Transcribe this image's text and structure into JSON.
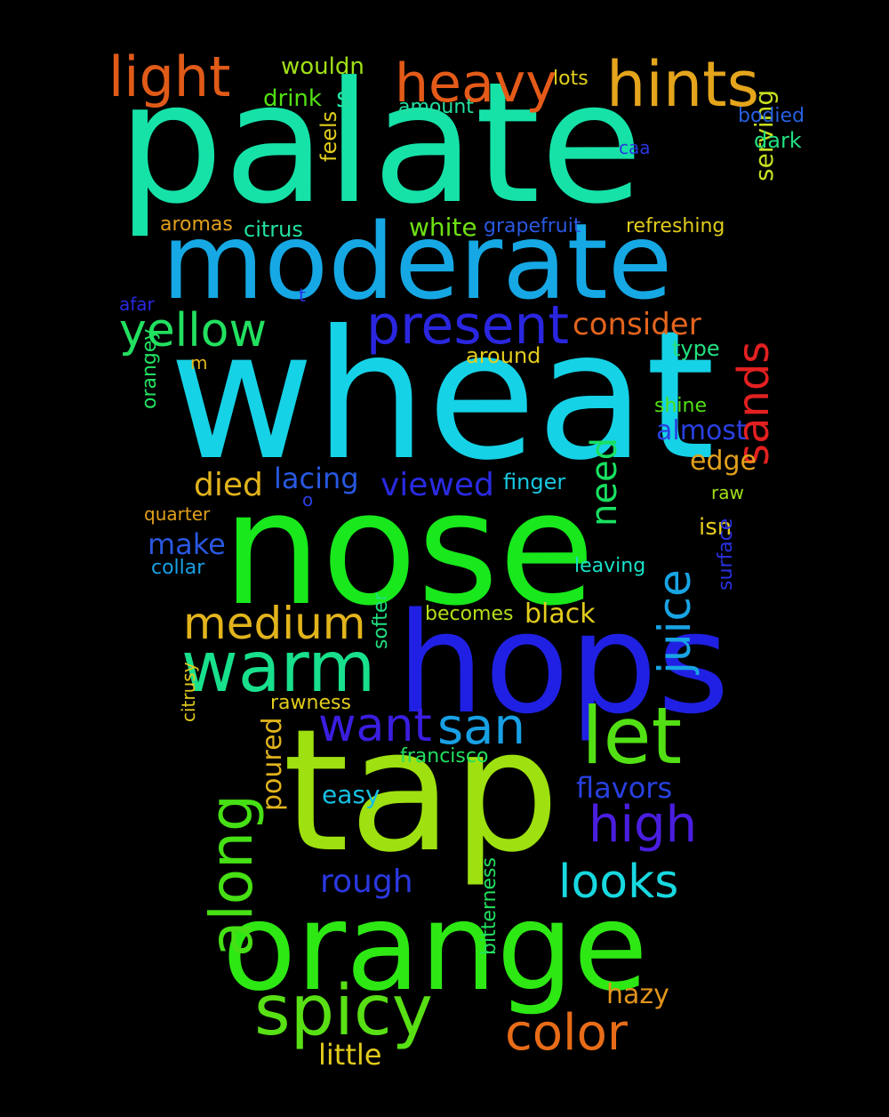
{
  "words": [
    {
      "text": "palate",
      "color": "#16e2a8"
    },
    {
      "text": "wheat",
      "color": "#16d2e6"
    },
    {
      "text": "nose",
      "color": "#18e81c"
    },
    {
      "text": "tap",
      "color": "#9ee010"
    },
    {
      "text": "hops",
      "color": "#2020e4"
    },
    {
      "text": "moderate",
      "color": "#16a8e4"
    },
    {
      "text": "orange",
      "color": "#2ee814"
    },
    {
      "text": "hints",
      "color": "#e4a41c"
    },
    {
      "text": "light",
      "color": "#e05a18"
    },
    {
      "text": "heavy",
      "color": "#e45a18"
    },
    {
      "text": "present",
      "color": "#2a26e0"
    },
    {
      "text": "yellow",
      "color": "#22e060"
    },
    {
      "text": "warm",
      "color": "#18e08c"
    },
    {
      "text": "let",
      "color": "#52e014"
    },
    {
      "text": "spicy",
      "color": "#58e014"
    },
    {
      "text": "color",
      "color": "#e86c18"
    },
    {
      "text": "medium",
      "color": "#e2b41c"
    },
    {
      "text": "along",
      "color": "#46e014"
    },
    {
      "text": "san",
      "color": "#18a0e4"
    },
    {
      "text": "want",
      "color": "#3a1ee0"
    },
    {
      "text": "high",
      "color": "#4a1ee0"
    },
    {
      "text": "looks",
      "color": "#18d8e0"
    },
    {
      "text": "sands",
      "color": "#e22020"
    },
    {
      "text": "juice",
      "color": "#18a4e4"
    },
    {
      "text": "consider",
      "color": "#e2641e"
    },
    {
      "text": "viewed",
      "color": "#2a2ae2"
    },
    {
      "text": "died",
      "color": "#e2b41c"
    },
    {
      "text": "lacing",
      "color": "#2858e0"
    },
    {
      "text": "need",
      "color": "#18e060"
    },
    {
      "text": "almost",
      "color": "#2a40e0"
    },
    {
      "text": "edge",
      "color": "#e2a01c"
    },
    {
      "text": "make",
      "color": "#2a58e0"
    },
    {
      "text": "rough",
      "color": "#2a38e0"
    },
    {
      "text": "flavors",
      "color": "#2840e0"
    },
    {
      "text": "black",
      "color": "#e2cc1c"
    },
    {
      "text": "hazy",
      "color": "#e2941c"
    },
    {
      "text": "little",
      "color": "#e2cc1c"
    },
    {
      "text": "serving",
      "color": "#c8e020"
    },
    {
      "text": "poured",
      "color": "#e2b41c"
    },
    {
      "text": "wouldn",
      "color": "#a0e018"
    },
    {
      "text": "drink",
      "color": "#52e014"
    },
    {
      "text": "s",
      "color": "#20e0a0"
    },
    {
      "text": "amount",
      "color": "#22e0a0"
    },
    {
      "text": "lots",
      "color": "#e2d01c"
    },
    {
      "text": "bodied",
      "color": "#2860e0"
    },
    {
      "text": "dark",
      "color": "#22e080"
    },
    {
      "text": "caa",
      "color": "#2a38e0"
    },
    {
      "text": "feels",
      "color": "#e2cc1c"
    },
    {
      "text": "aromas",
      "color": "#e2a01c"
    },
    {
      "text": "citrus",
      "color": "#22e0a0"
    },
    {
      "text": "white",
      "color": "#6ee014"
    },
    {
      "text": "grapefruit",
      "color": "#2a58e0"
    },
    {
      "text": "refreshing",
      "color": "#e2cc1c"
    },
    {
      "text": "afar",
      "color": "#2a28e0"
    },
    {
      "text": "t",
      "color": "#2a30e0"
    },
    {
      "text": "type",
      "color": "#22e080"
    },
    {
      "text": "around",
      "color": "#e2cc1c"
    },
    {
      "text": "m",
      "color": "#e2b41c"
    },
    {
      "text": "orangey",
      "color": "#22e060"
    },
    {
      "text": "shine",
      "color": "#52e014"
    },
    {
      "text": "finger",
      "color": "#18c8e0"
    },
    {
      "text": "raw",
      "color": "#a0e018"
    },
    {
      "text": "o",
      "color": "#2a40e0"
    },
    {
      "text": "quarter",
      "color": "#e2a01c"
    },
    {
      "text": "isn",
      "color": "#e2cc1c"
    },
    {
      "text": "collar",
      "color": "#18a0e4"
    },
    {
      "text": "leaving",
      "color": "#18e0c8"
    },
    {
      "text": "surface",
      "color": "#2a30e0"
    },
    {
      "text": "becomes",
      "color": "#b4e018"
    },
    {
      "text": "softer",
      "color": "#22e080"
    },
    {
      "text": "rawness",
      "color": "#e2cc1c"
    },
    {
      "text": "citrusy",
      "color": "#e2cc1c"
    },
    {
      "text": "francisco",
      "color": "#22e060"
    },
    {
      "text": "easy",
      "color": "#18c0e4"
    },
    {
      "text": "bitterness",
      "color": "#22e060"
    }
  ]
}
